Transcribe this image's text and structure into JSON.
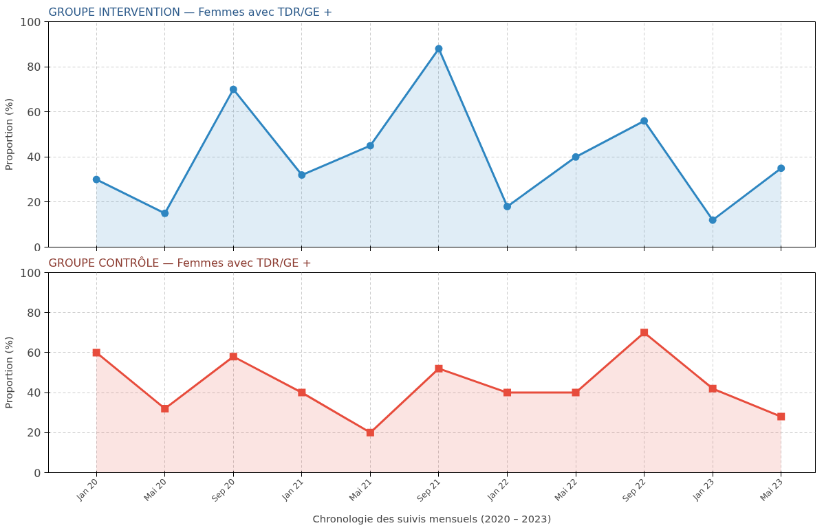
{
  "chart_data": [
    {
      "type": "area",
      "title": "GROUPE INTERVENTION — Femmes avec TDR/GE +",
      "ylabel": "Proportion (%)",
      "categories": [
        null,
        null,
        null,
        null,
        null,
        null,
        null,
        null,
        null,
        null,
        null
      ],
      "series": [
        {
          "color": "#2e86c1",
          "values": [
            30,
            15,
            70,
            32,
            45,
            88,
            18,
            40,
            56,
            12,
            35
          ]
        }
      ],
      "ylim": [
        0,
        100
      ],
      "yticks": [
        0,
        20,
        40,
        60,
        80,
        100
      ],
      "grid": true,
      "marker": "circle",
      "tick_labels": "y"
    },
    {
      "type": "area",
      "title": "GROUPE CONTRÔLE — Femmes avec TDR/GE +",
      "xlabel": "Chronologie des suivis mensuels (2020 – 2023)",
      "ylabel": "Proportion (%)",
      "categories": [
        "Jan 20",
        "Mai 20",
        "Sep 20",
        "Jan 21",
        "Mai 21",
        "Sep 21",
        "Jan 22",
        "Mai 22",
        "Sep 22",
        "Jan 23",
        "Mai 23"
      ],
      "series": [
        {
          "color": "#e74c3c",
          "values": [
            60,
            32,
            58,
            40,
            20,
            52,
            40,
            40,
            70,
            42,
            28
          ]
        }
      ],
      "ylim": [
        0,
        100
      ],
      "yticks": [
        0,
        20,
        40,
        60,
        80,
        100
      ],
      "grid": true,
      "marker": "square"
    }
  ]
}
